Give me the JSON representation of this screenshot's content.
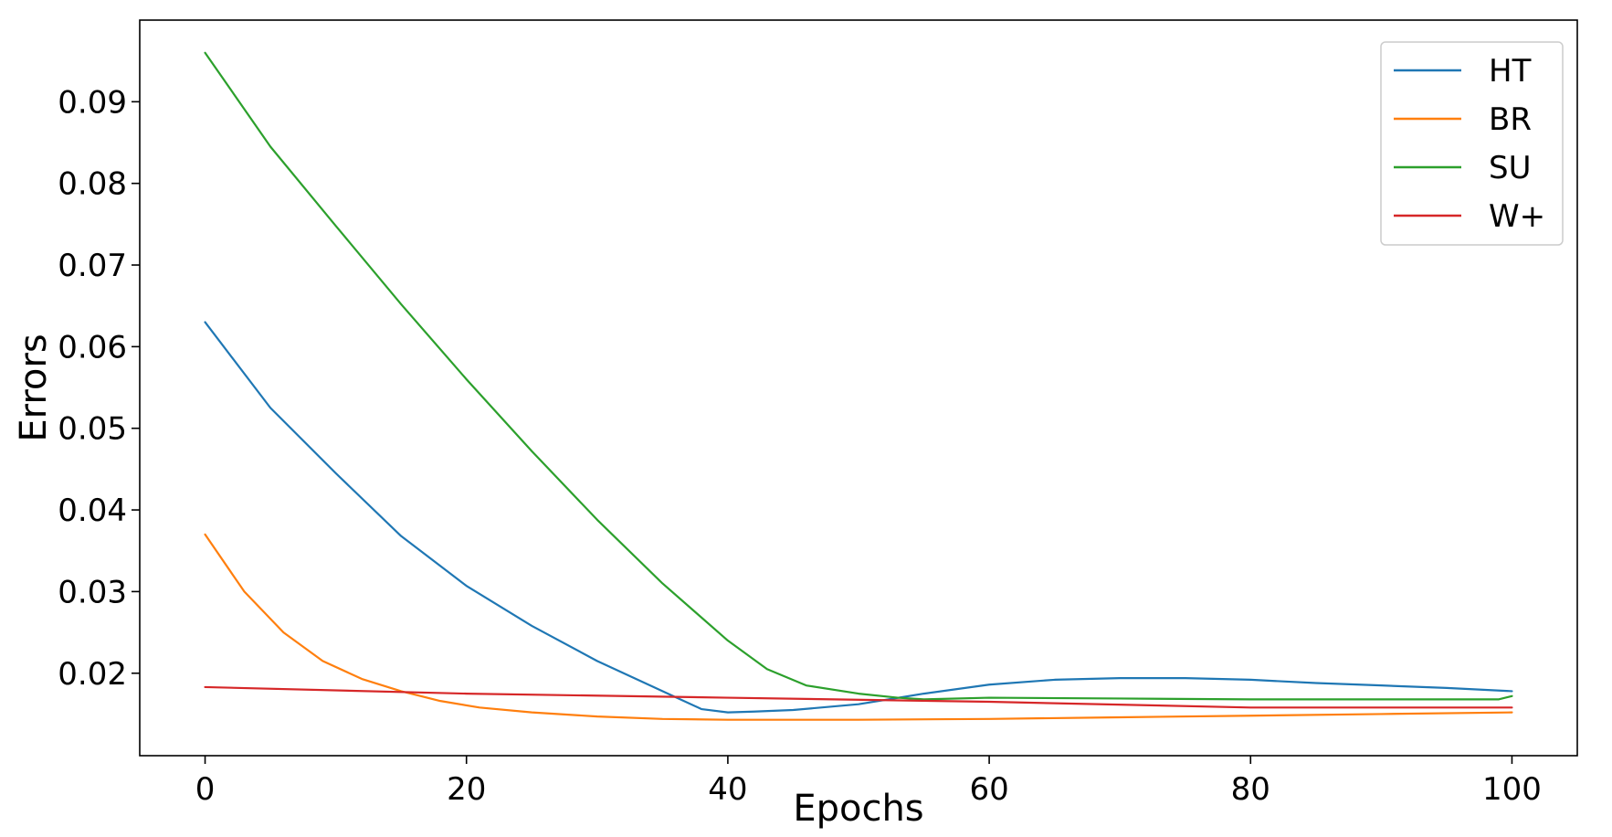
{
  "chart_data": {
    "type": "line",
    "xlabel": "Epochs",
    "ylabel": "Errors",
    "xlim": [
      -5,
      105
    ],
    "ylim": [
      0.0099,
      0.1
    ],
    "xticks": [
      0,
      20,
      40,
      60,
      80,
      100
    ],
    "xtick_labels": [
      "0",
      "20",
      "40",
      "60",
      "80",
      "100"
    ],
    "yticks": [
      0.02,
      0.03,
      0.04,
      0.05,
      0.06,
      0.07,
      0.08,
      0.09
    ],
    "ytick_labels": [
      "0.02",
      "0.03",
      "0.04",
      "0.05",
      "0.06",
      "0.07",
      "0.08",
      "0.09"
    ],
    "grid": false,
    "legend_position": "top-right",
    "series": [
      {
        "name": "HT",
        "color": "#1f77b4",
        "x": [
          0,
          5,
          10,
          15,
          20,
          25,
          30,
          35,
          38,
          40,
          42,
          45,
          50,
          55,
          60,
          65,
          70,
          75,
          80,
          85,
          90,
          95,
          100
        ],
        "y": [
          0.063,
          0.0525,
          0.0445,
          0.0368,
          0.0307,
          0.0258,
          0.0215,
          0.0178,
          0.0156,
          0.0152,
          0.0153,
          0.0155,
          0.0162,
          0.0175,
          0.0186,
          0.0192,
          0.0194,
          0.0194,
          0.0192,
          0.0188,
          0.0185,
          0.0182,
          0.0178
        ]
      },
      {
        "name": "BR",
        "color": "#ff7f0e",
        "x": [
          0,
          3,
          6,
          9,
          12,
          15,
          18,
          21,
          25,
          30,
          35,
          40,
          45,
          50,
          60,
          70,
          80,
          90,
          100
        ],
        "y": [
          0.037,
          0.03,
          0.025,
          0.0215,
          0.0193,
          0.0178,
          0.0166,
          0.0158,
          0.0152,
          0.0147,
          0.0144,
          0.0143,
          0.0143,
          0.0143,
          0.0144,
          0.0146,
          0.0148,
          0.015,
          0.0152
        ]
      },
      {
        "name": "SU",
        "color": "#2ca02c",
        "x": [
          0,
          5,
          10,
          15,
          20,
          25,
          30,
          35,
          40,
          43,
          46,
          50,
          53,
          55,
          60,
          70,
          80,
          90,
          99,
          100
        ],
        "y": [
          0.096,
          0.0845,
          0.0748,
          0.0652,
          0.056,
          0.0472,
          0.0388,
          0.031,
          0.024,
          0.0205,
          0.0185,
          0.0175,
          0.017,
          0.0168,
          0.017,
          0.0169,
          0.0168,
          0.0168,
          0.0168,
          0.0172
        ]
      },
      {
        "name": "W+",
        "color": "#d62728",
        "x": [
          0,
          20,
          40,
          60,
          80,
          100
        ],
        "y": [
          0.0183,
          0.0175,
          0.017,
          0.0165,
          0.0158,
          0.0158
        ]
      }
    ]
  }
}
